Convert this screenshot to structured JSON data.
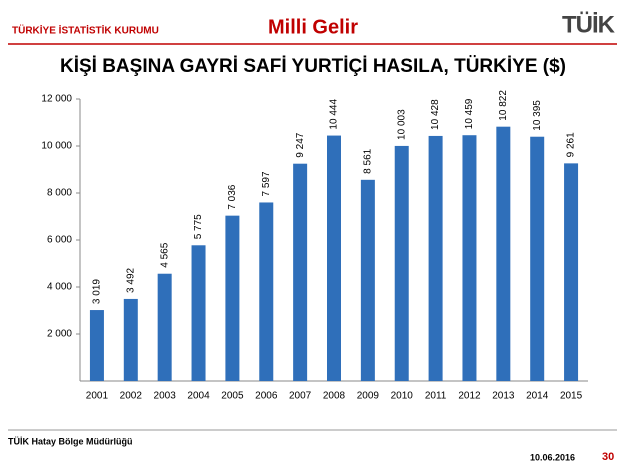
{
  "header": {
    "org": "TÜRKİYE İSTATİSTİK KURUMU",
    "topic": "Milli Gelir",
    "logo": "TÜİK"
  },
  "footer": {
    "office": "TÜİK Hatay Bölge Müdürlüğü",
    "date": "10.06.2016",
    "page": "30"
  },
  "chart_data": {
    "type": "bar",
    "title": "KİŞİ BAŞINA GAYRİ SAFİ YURTİÇİ HASILA, TÜRKİYE ($)",
    "categories": [
      "2001",
      "2002",
      "2003",
      "2004",
      "2005",
      "2006",
      "2007",
      "2008",
      "2009",
      "2010",
      "2011",
      "2012",
      "2013",
      "2014",
      "2015"
    ],
    "values": [
      3019,
      3492,
      4565,
      5775,
      7036,
      7597,
      9247,
      10444,
      8561,
      10003,
      10428,
      10459,
      10822,
      10395,
      9261
    ],
    "value_labels": [
      "3 019",
      "3 492",
      "4 565",
      "5 775",
      "7 036",
      "7 597",
      "9 247",
      "10 444",
      "8 561",
      "10 003",
      "10 428",
      "10 459",
      "10 822",
      "10 395",
      "9 261"
    ],
    "color": "#2f6fba",
    "ylim": [
      0,
      12000
    ],
    "yticks": [
      {
        "value": 2000,
        "label": "2 000"
      },
      {
        "value": 4000,
        "label": "4 000"
      },
      {
        "value": 6000,
        "label": "6 000"
      },
      {
        "value": 8000,
        "label": "8 000"
      },
      {
        "value": 10000,
        "label": "10 000"
      },
      {
        "value": 12000,
        "label": "12 000"
      }
    ],
    "grid": false
  }
}
